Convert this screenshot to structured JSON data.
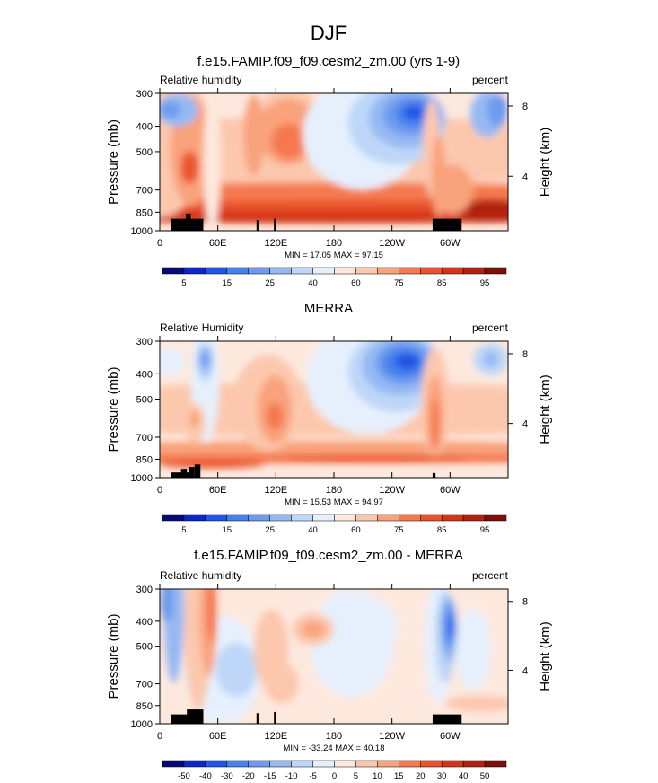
{
  "figure": {
    "season_title": "DJF"
  },
  "chart_data": [
    {
      "type": "heatmap",
      "title": "f.e15.FAMIP.f09_f09.cesm2_zm.00 (yrs 1-9)",
      "left_label": "Relative humidity",
      "right_label": "percent",
      "ylabel": "Pressure (mb)",
      "ylabel_right": "Height (km)",
      "x_ticks": [
        "0",
        "60E",
        "120E",
        "180",
        "120W",
        "60W"
      ],
      "x_tick_lon": [
        0,
        60,
        120,
        180,
        240,
        300
      ],
      "xlim": [
        0,
        360
      ],
      "y_ticks": [
        "300",
        "400",
        "500",
        "700",
        "850",
        "1000"
      ],
      "y_tick_p": [
        300,
        400,
        500,
        700,
        850,
        1000
      ],
      "ylim": [
        1000,
        300
      ],
      "height_ticks": [
        "8",
        "4"
      ],
      "height_tick_p": [
        335,
        620
      ],
      "stats": "MIN = 17.05  MAX = 97.15",
      "min": 17.05,
      "max": 97.15,
      "colorbar": {
        "labels": [
          "5",
          "15",
          "25",
          "40",
          "60",
          "75",
          "85",
          "95"
        ],
        "label_after_box": [
          0,
          2,
          4,
          6,
          8,
          10,
          12,
          14
        ],
        "colors": [
          "#050a78",
          "#0a28c8",
          "#2155e6",
          "#4682eb",
          "#6e9bee",
          "#96b9f3",
          "#bed7f8",
          "#e6f0fd",
          "#fde8de",
          "#fcc8ad",
          "#f9a37c",
          "#f5794f",
          "#e9522a",
          "#d43518",
          "#b22010",
          "#7d0f0b"
        ]
      }
    },
    {
      "type": "heatmap",
      "title": "MERRA",
      "left_label": "Relative Humidity",
      "right_label": "percent",
      "ylabel": "Pressure (mb)",
      "ylabel_right": "Height (km)",
      "x_ticks": [
        "0",
        "60E",
        "120E",
        "180",
        "120W",
        "60W"
      ],
      "x_tick_lon": [
        0,
        60,
        120,
        180,
        240,
        300
      ],
      "xlim": [
        0,
        360
      ],
      "y_ticks": [
        "300",
        "400",
        "500",
        "700",
        "850",
        "1000"
      ],
      "y_tick_p": [
        300,
        400,
        500,
        700,
        850,
        1000
      ],
      "ylim": [
        1000,
        300
      ],
      "height_ticks": [
        "8",
        "4"
      ],
      "height_tick_p": [
        335,
        620
      ],
      "stats": "MIN = 15.53  MAX = 94.97",
      "min": 15.53,
      "max": 94.97,
      "colorbar": {
        "labels": [
          "5",
          "15",
          "25",
          "40",
          "60",
          "75",
          "85",
          "95"
        ],
        "label_after_box": [
          0,
          2,
          4,
          6,
          8,
          10,
          12,
          14
        ],
        "colors": [
          "#050a78",
          "#0a28c8",
          "#2155e6",
          "#4682eb",
          "#6e9bee",
          "#96b9f3",
          "#bed7f8",
          "#e6f0fd",
          "#fde8de",
          "#fcc8ad",
          "#f9a37c",
          "#f5794f",
          "#e9522a",
          "#d43518",
          "#b22010",
          "#7d0f0b"
        ]
      }
    },
    {
      "type": "heatmap",
      "title": "f.e15.FAMIP.f09_f09.cesm2_zm.00 - MERRA",
      "left_label": "Relative humidity",
      "right_label": "percent",
      "ylabel": "Pressure (mb)",
      "ylabel_right": "Height (km)",
      "x_ticks": [
        "0",
        "60E",
        "120E",
        "180",
        "120W",
        "60W"
      ],
      "x_tick_lon": [
        0,
        60,
        120,
        180,
        240,
        300
      ],
      "xlim": [
        0,
        360
      ],
      "y_ticks": [
        "300",
        "400",
        "500",
        "700",
        "850",
        "1000"
      ],
      "y_tick_p": [
        300,
        400,
        500,
        700,
        850,
        1000
      ],
      "ylim": [
        1000,
        300
      ],
      "height_ticks": [
        "8",
        "4"
      ],
      "height_tick_p": [
        335,
        620
      ],
      "stats": "MIN = -33.24  MAX = 40.18",
      "min": -33.24,
      "max": 40.18,
      "colorbar": {
        "labels": [
          "-50",
          "-40",
          "-30",
          "-20",
          "-15",
          "-10",
          "-5",
          "0",
          "5",
          "10",
          "15",
          "20",
          "30",
          "40",
          "50"
        ],
        "label_after_box": [
          0,
          1,
          2,
          3,
          4,
          5,
          6,
          7,
          8,
          9,
          10,
          11,
          12,
          13,
          14
        ],
        "colors": [
          "#050a78",
          "#0a28c8",
          "#2155e6",
          "#4682eb",
          "#6e9bee",
          "#96b9f3",
          "#bed7f8",
          "#e6f0fd",
          "#fde8de",
          "#fcc8ad",
          "#f9a37c",
          "#f5794f",
          "#e9522a",
          "#d43518",
          "#b22010",
          "#7d0f0b"
        ]
      }
    }
  ]
}
